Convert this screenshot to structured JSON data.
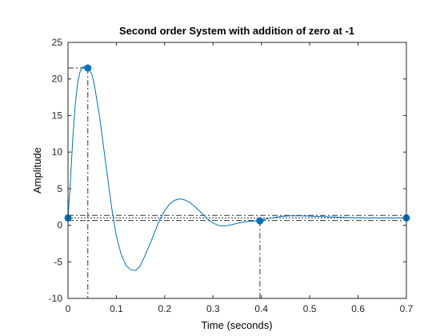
{
  "chart_data": {
    "type": "line",
    "title": "Second order System with addition of zero at -1",
    "xlabel": "Time (seconds)",
    "ylabel": "Amplitude",
    "xlim": [
      0,
      0.7
    ],
    "ylim": [
      -10,
      25
    ],
    "x_ticks": [
      0,
      0.1,
      0.2,
      0.3,
      0.4,
      0.5,
      0.6,
      0.7
    ],
    "y_ticks": [
      -10,
      -5,
      0,
      5,
      10,
      15,
      20,
      25
    ],
    "x_tick_labels": [
      "0",
      "0.1",
      "0.2",
      "0.3",
      "0.4",
      "0.5",
      "0.6",
      "0.7"
    ],
    "y_tick_labels": [
      "-10",
      "-5",
      "0",
      "5",
      "10",
      "15",
      "20",
      "25"
    ],
    "grid": false,
    "series_color": "#0072BD",
    "series": [
      {
        "x": [
          0,
          0.005,
          0.01,
          0.015,
          0.02,
          0.025,
          0.03,
          0.035,
          0.04,
          0.043,
          0.05,
          0.055,
          0.06,
          0.065,
          0.07,
          0.08,
          0.09,
          0.1,
          0.11,
          0.12,
          0.13,
          0.14,
          0.15,
          0.16,
          0.17,
          0.18,
          0.19,
          0.2,
          0.21,
          0.22,
          0.23,
          0.24,
          0.25,
          0.26,
          0.27,
          0.28,
          0.29,
          0.3,
          0.31,
          0.32,
          0.33,
          0.34,
          0.35,
          0.36,
          0.37,
          0.38,
          0.39,
          0.395,
          0.4,
          0.41,
          0.42,
          0.43,
          0.44,
          0.45,
          0.46,
          0.47,
          0.48,
          0.5,
          0.52,
          0.54,
          0.56,
          0.58,
          0.6,
          0.62,
          0.64,
          0.66,
          0.68,
          0.7
        ],
        "y": [
          1,
          6,
          12,
          16.5,
          19.5,
          21,
          21.6,
          21.7,
          21.6,
          21.5,
          20.5,
          19,
          17,
          15,
          12.5,
          7.5,
          2.5,
          -1.5,
          -4,
          -5.5,
          -6.1,
          -6.2,
          -5.5,
          -4,
          -2.5,
          -0.8,
          0.8,
          2,
          2.9,
          3.4,
          3.6,
          3.5,
          3.2,
          2.7,
          2.1,
          1.4,
          0.8,
          0.3,
          0,
          -0.1,
          -0.05,
          0.1,
          0.25,
          0.4,
          0.5,
          0.55,
          0.6,
          0.62,
          0.7,
          0.85,
          1,
          1.1,
          1.2,
          1.25,
          1.3,
          1.3,
          1.3,
          1.25,
          1.2,
          1.15,
          1.1,
          1.05,
          1.02,
          1.0,
          1.0,
          1.0,
          1.0,
          1.0
        ]
      }
    ],
    "markers": [
      {
        "x": 0,
        "y": 1
      },
      {
        "x": 0.041,
        "y": 21.5
      },
      {
        "x": 0.397,
        "y": 0.6
      },
      {
        "x": 0.7,
        "y": 1.0
      }
    ],
    "reference_lines": {
      "horizontal": [
        21.5,
        1.35,
        1.0,
        0.65
      ],
      "vertical": [
        0.041,
        0.397
      ]
    }
  }
}
